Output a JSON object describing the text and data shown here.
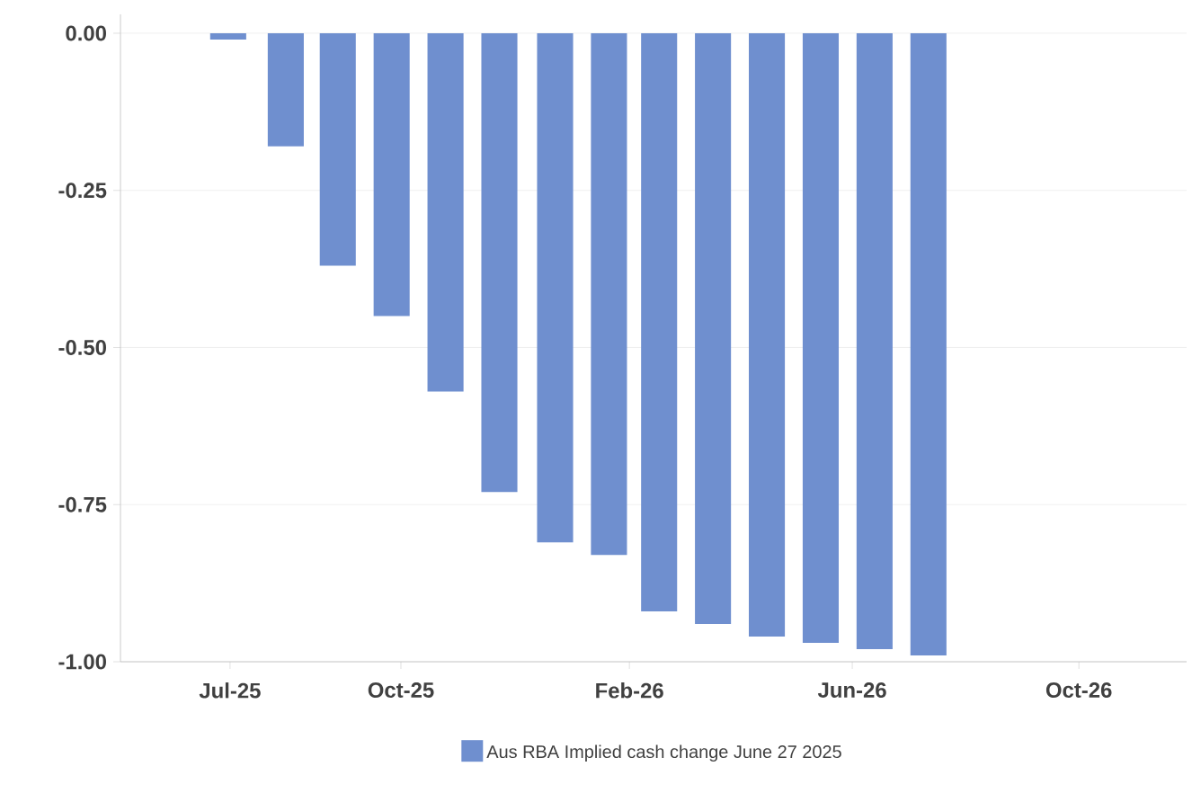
{
  "chart_data": {
    "type": "bar",
    "x": [
      "2025-06-30",
      "2025-07-31",
      "2025-08-28",
      "2025-09-26",
      "2025-10-25",
      "2025-11-23",
      "2025-12-23",
      "2026-01-21",
      "2026-02-17",
      "2026-03-18",
      "2026-04-16",
      "2026-05-15",
      "2026-06-13",
      "2026-07-12"
    ],
    "series": [
      {
        "name": "Aus RBA Implied cash change June 27 2025",
        "color": "#6f8fcf",
        "values": [
          -0.01,
          -0.18,
          -0.37,
          -0.45,
          -0.57,
          -0.73,
          -0.81,
          -0.83,
          -0.92,
          -0.94,
          -0.96,
          -0.97,
          -0.98,
          -0.99
        ]
      }
    ],
    "xlim": [
      "2025-05-03",
      "2026-11-28"
    ],
    "xticks": [
      {
        "value": "2025-07-01",
        "label": "Jul-25"
      },
      {
        "value": "2025-10-01",
        "label": "Oct-25"
      },
      {
        "value": "2026-02-01",
        "label": "Feb-26"
      },
      {
        "value": "2026-06-01",
        "label": "Jun-26"
      },
      {
        "value": "2026-10-01",
        "label": "Oct-26"
      }
    ],
    "ylim": [
      -1,
      0.03
    ],
    "yticks": [
      {
        "value": 0,
        "label": "0.00"
      },
      {
        "value": -0.25,
        "label": "-0.25"
      },
      {
        "value": -0.5,
        "label": "-0.50"
      },
      {
        "value": -0.75,
        "label": "-0.75"
      },
      {
        "value": -1,
        "label": "-1.00"
      }
    ],
    "grid": "y",
    "legend": "bottom"
  }
}
